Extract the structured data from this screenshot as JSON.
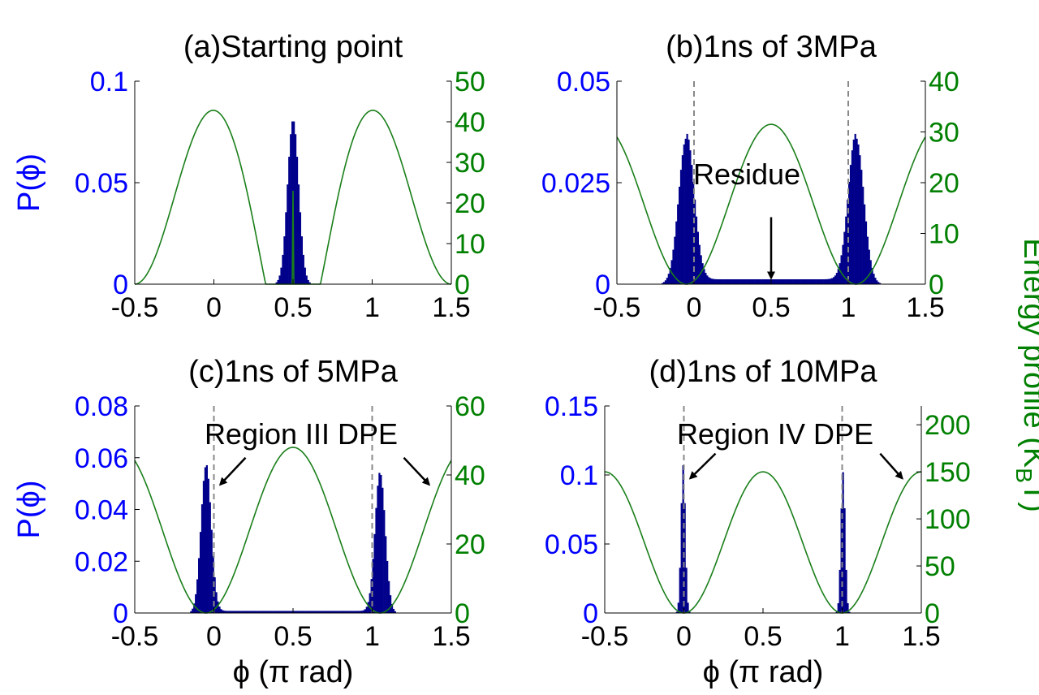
{
  "figure": {
    "shared_right_label": "Energy profile (K",
    "shared_right_label_sub": "B",
    "shared_right_label_tail": "T)",
    "colors": {
      "left_axis": "#0000ff",
      "right_axis": "#008000",
      "bars": "#00008b",
      "energy_line": "#1a7f1a",
      "dashed": "#888888",
      "annotation": "#000000"
    }
  },
  "chart_data": [
    {
      "type": "bar",
      "id": "a",
      "title": "(a)Starting point",
      "ylabel": "P(ϕ)",
      "xlabel": "",
      "xlim": [
        -0.5,
        1.5
      ],
      "xticks": [
        "-0.5",
        "0",
        "0.5",
        "1",
        "1.5"
      ],
      "left_ylim": [
        0,
        0.1
      ],
      "left_yticks": [
        "0",
        "0.05",
        "0.1"
      ],
      "right_ylim": [
        0,
        50
      ],
      "right_yticks": [
        "0",
        "10",
        "20",
        "30",
        "40",
        "50"
      ],
      "dashed_x": [],
      "histogram": {
        "peaks": [
          {
            "center": 0.5,
            "height": 0.081,
            "width": 0.035
          }
        ],
        "background": 0
      },
      "energy": {
        "form": "double-well",
        "max": 43,
        "mid": 23,
        "min_x": [
          -0.5,
          1.5
        ],
        "max_x": [
          0.06,
          0.94
        ]
      },
      "annotations": []
    },
    {
      "type": "bar",
      "id": "b",
      "title": "(b)1ns of 3MPa",
      "ylabel": "",
      "xlabel": "",
      "xlim": [
        -0.5,
        1.5
      ],
      "xticks": [
        "-0.5",
        "0",
        "0.5",
        "1",
        "1.5"
      ],
      "left_ylim": [
        0,
        0.05
      ],
      "left_yticks": [
        "0",
        "0.025",
        "0.05"
      ],
      "right_ylim": [
        0,
        40
      ],
      "right_yticks": [
        "0",
        "10",
        "20",
        "30",
        "40"
      ],
      "dashed_x": [
        0,
        1
      ],
      "histogram": {
        "peaks": [
          {
            "center": -0.05,
            "height": 0.036,
            "width": 0.05
          },
          {
            "center": 1.05,
            "height": 0.036,
            "width": 0.05
          }
        ],
        "background": 0.0012
      },
      "energy": {
        "form": "cosine",
        "max": 31.5,
        "min": 0,
        "period": 1.1,
        "center": 0.5
      },
      "annotations": [
        {
          "text": "Residue",
          "arrow_to_x": 0.5,
          "arrow_to_y": 0.0015
        }
      ]
    },
    {
      "type": "bar",
      "id": "c",
      "title": "(c)1ns of 5MPa",
      "ylabel": "P(ϕ)",
      "xlabel": "ϕ (π rad)",
      "xlim": [
        -0.5,
        1.5
      ],
      "xticks": [
        "-0.5",
        "0",
        "0.5",
        "1",
        "1.5"
      ],
      "left_ylim": [
        0,
        0.08
      ],
      "left_yticks": [
        "0",
        "0.02",
        "0.04",
        "0.06",
        "0.08"
      ],
      "right_ylim": [
        0,
        60
      ],
      "right_yticks": [
        "0",
        "20",
        "40",
        "60"
      ],
      "dashed_x": [
        0,
        1
      ],
      "histogram": {
        "peaks": [
          {
            "center": -0.05,
            "height": 0.057,
            "width": 0.032
          },
          {
            "center": 1.05,
            "height": 0.054,
            "width": 0.032
          }
        ],
        "background": 0.0008
      },
      "energy": {
        "form": "cosine",
        "max": 48,
        "min": 0,
        "period": 1.1,
        "center": 0.5
      },
      "annotations": [
        {
          "text": "Region III DPE"
        }
      ]
    },
    {
      "type": "bar",
      "id": "d",
      "title": "(d)1ns of 10MPa",
      "ylabel": "",
      "xlabel": "ϕ (π rad)",
      "xlim": [
        -0.5,
        1.5
      ],
      "xticks": [
        "-0.5",
        "0",
        "0.5",
        "1",
        "1.5"
      ],
      "left_ylim": [
        0,
        0.15
      ],
      "left_yticks": [
        "0",
        "0.05",
        "0.1",
        "0.15"
      ],
      "right_ylim": [
        0,
        220
      ],
      "right_yticks": [
        "0",
        "50",
        "100",
        "150",
        "200"
      ],
      "dashed_x": [
        0,
        1
      ],
      "histogram": {
        "peaks": [
          {
            "center": -0.005,
            "height": 0.107,
            "width": 0.013
          },
          {
            "center": 1.005,
            "height": 0.102,
            "width": 0.013
          }
        ],
        "background": 0
      },
      "energy": {
        "form": "cosine",
        "max": 150,
        "min": 0,
        "period": 1.0,
        "center": 0.5
      },
      "annotations": [
        {
          "text": "Region IV DPE"
        }
      ]
    }
  ]
}
